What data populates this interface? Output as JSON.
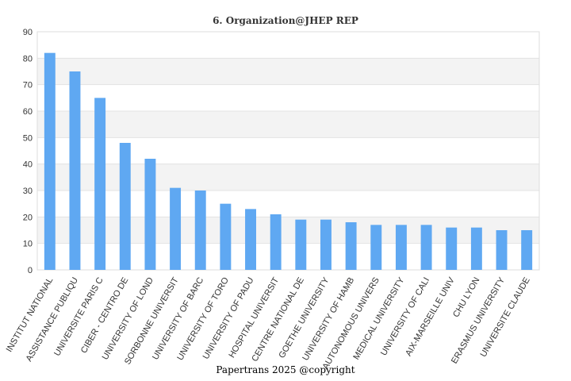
{
  "chart_data": {
    "type": "bar",
    "title": "6. Organization@JHEP REP",
    "xlabel": "",
    "ylabel": "",
    "ylim": [
      0,
      90
    ],
    "yticks": [
      0,
      10,
      20,
      30,
      40,
      50,
      60,
      70,
      80,
      90
    ],
    "grid": true,
    "bar_color": "#5fa8f2",
    "band_color": "#f3f3f3",
    "categories": [
      "INSTITUT NATIONAL",
      "ASSISTANCE PUBLIQU",
      "UNIVERSITE PARIS C",
      "CIBER - CENTRO DE",
      "UNIVERSITY OF LOND",
      "SORBONNE UNIVERSIT",
      "UNIVERSITY OF BARC",
      "UNIVERSITY OF TORO",
      "UNIVERSITY OF PADU",
      "HOSPITAL UNIVERSIT",
      "CENTRE NATIONAL DE",
      "GOETHE UNIVERSITY",
      "UNIVERSITY OF HAMB",
      "AUTONOMOUS UNIVERS",
      "MEDICAL UNIVERSITY",
      "UNIVERSITY OF CALI",
      "AIX-MARSEILLE UNIV",
      "CHU LYON",
      "ERASMUS UNIVERSITY",
      "UNIVERSITE CLAUDE"
    ],
    "values": [
      82,
      75,
      65,
      48,
      42,
      31,
      30,
      25,
      23,
      21,
      19,
      19,
      18,
      17,
      17,
      17,
      16,
      16,
      15,
      15
    ]
  },
  "footer": "Papertrans 2025 @copyright"
}
